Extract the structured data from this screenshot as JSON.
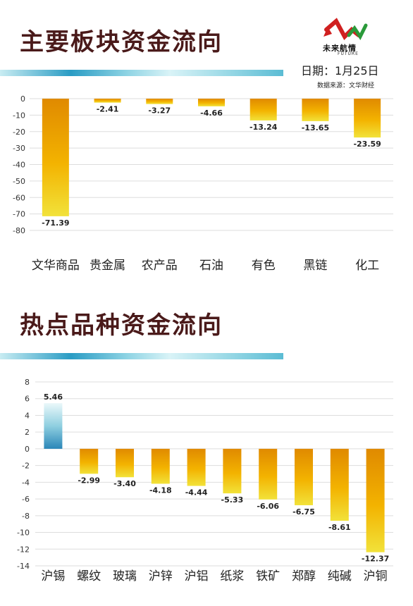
{
  "header": {
    "title": "主要板块资金流向",
    "logo_text": "未来航情",
    "logo_sub": "FUTURE",
    "date": "日期：1月25日",
    "source": "数据来源：文华财经"
  },
  "section2": {
    "title": "热点品种资金流向"
  },
  "colors": {
    "title": "#4a1a1a",
    "bar_negative_top": "#e08a00",
    "bar_negative_bottom": "#f2e23a",
    "bar_positive_top": "#eaf8fa",
    "bar_positive_bottom": "#2a86b8",
    "band_dark": "#2a9cc4",
    "band_light": "#bfe8f0",
    "grid": "#dddddd"
  },
  "chart_data": [
    {
      "type": "bar",
      "title": "主要板块资金流向",
      "categories": [
        "文华商品",
        "贵金属",
        "农产品",
        "石油",
        "有色",
        "黑链",
        "化工"
      ],
      "values": [
        -71.39,
        -2.41,
        -3.27,
        -4.66,
        -13.24,
        -13.65,
        -23.59
      ],
      "value_labels": [
        "-71.39",
        "-2.41",
        "-3.27",
        "-4.66",
        "-13.24",
        "-13.65",
        "-23.59"
      ],
      "ylim": [
        -80,
        0
      ],
      "yticks": [
        0,
        -10,
        -20,
        -30,
        -40,
        -50,
        -60,
        -70,
        -80
      ],
      "grid": true
    },
    {
      "type": "bar",
      "title": "热点品种资金流向",
      "categories": [
        "沪锡",
        "螺纹",
        "玻璃",
        "沪锌",
        "沪铝",
        "纸浆",
        "铁矿",
        "郑醇",
        "纯碱",
        "沪铜"
      ],
      "values": [
        5.46,
        -2.99,
        -3.4,
        -4.18,
        -4.44,
        -5.33,
        -6.06,
        -6.75,
        -8.61,
        -12.37
      ],
      "value_labels": [
        "5.46",
        "-2.99",
        "-3.40",
        "-4.18",
        "-4.44",
        "-5.33",
        "-6.06",
        "-6.75",
        "-8.61",
        "-12.37"
      ],
      "ylim": [
        -14,
        8
      ],
      "yticks": [
        8,
        6,
        4,
        2,
        0,
        -2,
        -4,
        -6,
        -8,
        -10,
        -12,
        -14
      ],
      "grid": true
    }
  ]
}
